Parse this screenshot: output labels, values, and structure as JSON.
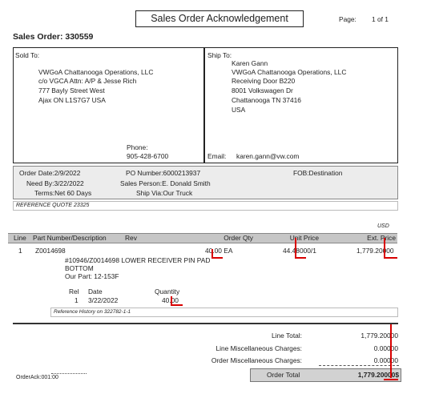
{
  "header": {
    "title": "Sales Order Acknowledgement",
    "page_label": "Page:",
    "page_value": "1 of 1",
    "sales_order": "Sales Order: 330559"
  },
  "sold_to": {
    "label": "Sold To:",
    "lines": [
      "VWGoA Chattanooga Operations, LLC",
      "c/o VGCA Attn: A/P & Jesse Rich",
      "777 Bayly Street West",
      "Ajax ON L1S7G7 USA"
    ],
    "phone_label": "Phone:",
    "phone": "905-428-6700"
  },
  "ship_to": {
    "label": "Ship To:",
    "lines": [
      "Karen Gann",
      "VWGoA Chattanooga Operations, LLC",
      "Receiving Door B220",
      "8001 Volkswagen Dr",
      "Chattanooga TN 37416",
      "USA"
    ],
    "email_label": "Email:",
    "email": "karen.gann@vw.com"
  },
  "order_info": {
    "order_date": "Order Date:2/9/2022",
    "need_by": "Need By:3/22/2022",
    "terms": "Terms:Net 60 Days",
    "po_number": "PO Number:6000213937",
    "sales_person": "Sales Person:E. Donald Smith",
    "ship_via": "Ship Via:Our Truck",
    "fob": "FOB:Destination"
  },
  "reference_quote": "REFERENCE QUOTE 23325",
  "currency": "USD",
  "table": {
    "columns": [
      "Line",
      "Part Number/Description",
      "Rev",
      "Order Qty",
      "Unit Price",
      "Ext. Price"
    ],
    "rows": [
      {
        "line": "1",
        "part": "Z0014698",
        "order_qty": "40.00 EA",
        "unit_price": "44.48000/1",
        "ext_price": "1,779.20000",
        "description": [
          "#10946/Z0014698 LOWER RECEIVER PIN PAD",
          "BOTTOM"
        ],
        "our_part": "Our Part:  12-153F",
        "release_headers": [
          "Rel",
          "Date",
          "Quantity"
        ],
        "release": {
          "rel": "1",
          "date": "3/22/2022",
          "quantity": "40.00"
        },
        "reference_history": "Reference History on 322782-1-1"
      }
    ]
  },
  "totals": {
    "line_total_label": "Line Total:",
    "line_total": "1,779.20000",
    "line_misc_label": "Line Miscellaneous Charges:",
    "line_misc": "0.00000",
    "order_misc_label": "Order Miscellaneous Charges:",
    "order_misc": "0.00000",
    "order_total_label": "Order Total",
    "order_total": "1,779.20000$"
  },
  "footer": {
    "form_id": "OrderAck:001:00"
  },
  "annotation_color": "#d80000"
}
